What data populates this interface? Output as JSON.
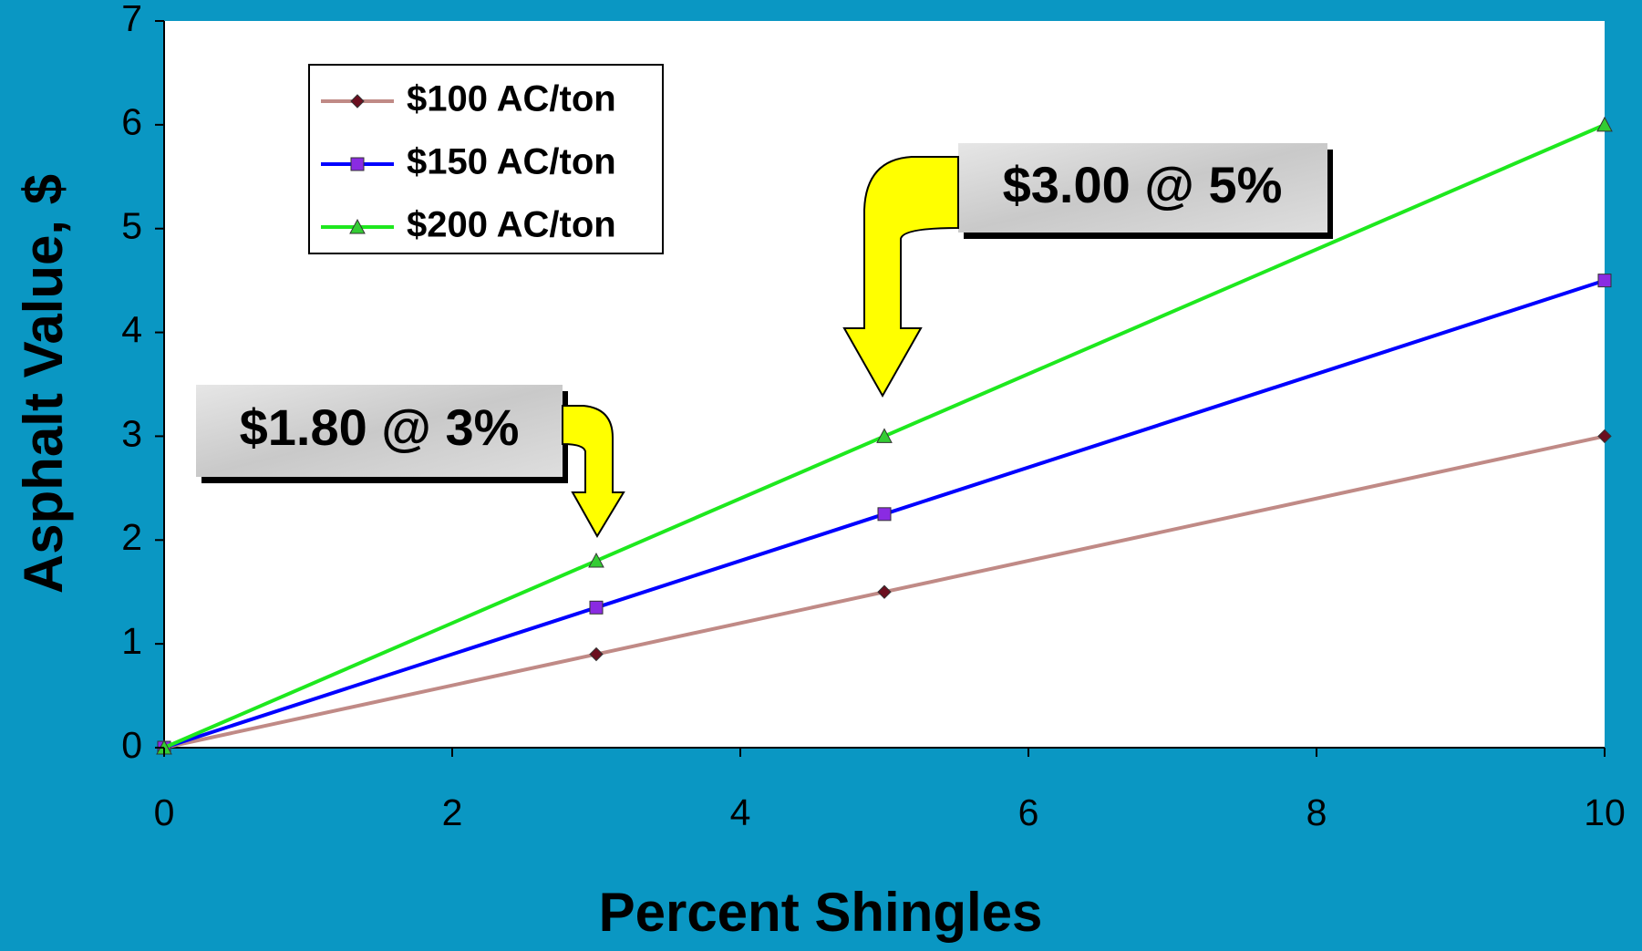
{
  "chart_data": {
    "type": "line",
    "x_label": "Percent Shingles",
    "y_label": "Asphalt Value, $",
    "x": [
      0,
      3,
      5,
      10
    ],
    "series": [
      {
        "name": "$100 AC/ton",
        "color": "#c08a86",
        "marker": "diamond",
        "marker_color": "#6b0f1f",
        "values": [
          0,
          0.9,
          1.5,
          3
        ]
      },
      {
        "name": "$150 AC/ton",
        "color": "#0000ff",
        "marker": "square",
        "marker_color": "#8a2be2",
        "values": [
          0,
          1.35,
          2.25,
          4.5
        ]
      },
      {
        "name": "$200 AC/ton",
        "color": "#1ee81e",
        "marker": "triangle",
        "marker_color": "#33cc33",
        "values": [
          0,
          1.8,
          3,
          6
        ]
      }
    ],
    "xlim": [
      0,
      10
    ],
    "xticks": [
      0,
      2,
      4,
      6,
      8,
      10
    ],
    "ylim": [
      0,
      7
    ],
    "yticks": [
      0,
      1,
      2,
      3,
      4,
      5,
      6,
      7
    ],
    "legend": "upper left",
    "annotations": [
      "$1.80 @ 3%",
      "$3.00 @ 5%"
    ]
  }
}
